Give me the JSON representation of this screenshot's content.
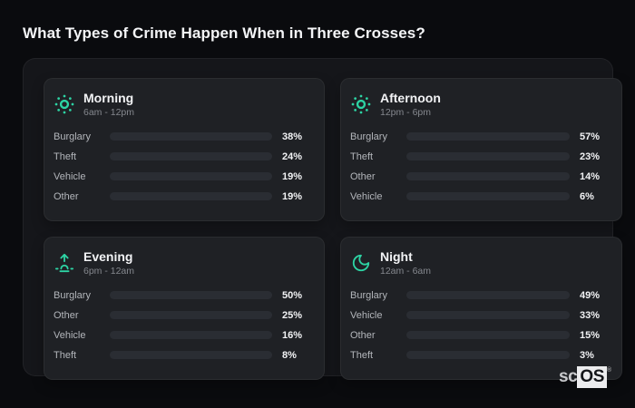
{
  "page_title": "What Types of Crime Happen When in Three Crosses?",
  "brand": {
    "prefix": "sc",
    "suffix": "OS",
    "registered_mark": "®"
  },
  "colors": {
    "background": "#0a0b0e",
    "panel": "#15161a",
    "card": "#1f2125",
    "bar_track": "#2a2d33",
    "accent_teal": "#2dd4a4",
    "burglary": "#e2731d",
    "theft": "#a855f7",
    "vehicle": "#3b82f6",
    "other": "#64748b"
  },
  "chart_data": {
    "type": "bar",
    "orientation": "horizontal",
    "title": "What Types of Crime Happen When in Three Crosses?",
    "value_unit": "%",
    "value_range": [
      0,
      100
    ],
    "legend": false,
    "grid": false,
    "groups": [
      {
        "period": "Morning",
        "time_range": "6am - 12pm",
        "icon": "sun-icon",
        "bars": [
          {
            "label": "Burglary",
            "value": 38,
            "display": "38%",
            "color_key": "burglary"
          },
          {
            "label": "Theft",
            "value": 24,
            "display": "24%",
            "color_key": "theft"
          },
          {
            "label": "Vehicle",
            "value": 19,
            "display": "19%",
            "color_key": "vehicle"
          },
          {
            "label": "Other",
            "value": 19,
            "display": "19%",
            "color_key": "other"
          }
        ]
      },
      {
        "period": "Afternoon",
        "time_range": "12pm - 6pm",
        "icon": "sun-icon",
        "bars": [
          {
            "label": "Burglary",
            "value": 57,
            "display": "57%",
            "color_key": "burglary"
          },
          {
            "label": "Theft",
            "value": 23,
            "display": "23%",
            "color_key": "theft"
          },
          {
            "label": "Other",
            "value": 14,
            "display": "14%",
            "color_key": "other"
          },
          {
            "label": "Vehicle",
            "value": 6,
            "display": "6%",
            "color_key": "vehicle"
          }
        ]
      },
      {
        "period": "Evening",
        "time_range": "6pm - 12am",
        "icon": "sunrise-icon",
        "bars": [
          {
            "label": "Burglary",
            "value": 50,
            "display": "50%",
            "color_key": "burglary"
          },
          {
            "label": "Other",
            "value": 25,
            "display": "25%",
            "color_key": "other"
          },
          {
            "label": "Vehicle",
            "value": 16,
            "display": "16%",
            "color_key": "vehicle"
          },
          {
            "label": "Theft",
            "value": 8,
            "display": "8%",
            "color_key": "theft"
          }
        ]
      },
      {
        "period": "Night",
        "time_range": "12am - 6am",
        "icon": "moon-icon",
        "bars": [
          {
            "label": "Burglary",
            "value": 49,
            "display": "49%",
            "color_key": "burglary"
          },
          {
            "label": "Vehicle",
            "value": 33,
            "display": "33%",
            "color_key": "vehicle"
          },
          {
            "label": "Other",
            "value": 15,
            "display": "15%",
            "color_key": "other"
          },
          {
            "label": "Theft",
            "value": 3,
            "display": "3%",
            "color_key": "theft"
          }
        ]
      }
    ]
  }
}
